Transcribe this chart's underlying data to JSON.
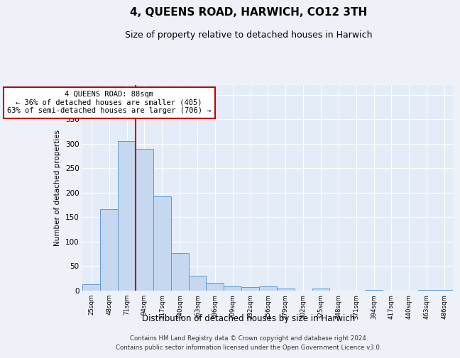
{
  "title": "4, QUEENS ROAD, HARWICH, CO12 3TH",
  "subtitle": "Size of property relative to detached houses in Harwich",
  "xlabel": "Distribution of detached houses by size in Harwich",
  "ylabel": "Number of detached properties",
  "categories": [
    "25sqm",
    "48sqm",
    "71sqm",
    "94sqm",
    "117sqm",
    "140sqm",
    "163sqm",
    "186sqm",
    "209sqm",
    "232sqm",
    "256sqm",
    "279sqm",
    "302sqm",
    "325sqm",
    "348sqm",
    "371sqm",
    "394sqm",
    "417sqm",
    "440sqm",
    "463sqm",
    "486sqm"
  ],
  "values": [
    13,
    166,
    305,
    289,
    192,
    77,
    31,
    16,
    9,
    7,
    8,
    5,
    0,
    4,
    0,
    0,
    2,
    0,
    0,
    2,
    2
  ],
  "bar_color": "#c5d8f0",
  "bar_edge_color": "#5b9bd5",
  "vline_color": "#c00000",
  "property_bin_index": 3,
  "annotation_text": "4 QUEENS ROAD: 88sqm\n← 36% of detached houses are smaller (405)\n63% of semi-detached houses are larger (706) →",
  "annotation_box_edge": "#c00000",
  "footer_line1": "Contains HM Land Registry data © Crown copyright and database right 2024.",
  "footer_line2": "Contains public sector information licensed under the Open Government Licence v3.0.",
  "title_fontsize": 11,
  "subtitle_fontsize": 9,
  "ylim": [
    0,
    420
  ],
  "background_color": "#eef2f8",
  "axes_background": "#e4ecf7"
}
